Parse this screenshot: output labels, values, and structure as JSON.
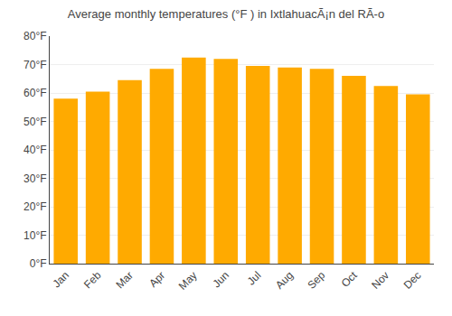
{
  "chart_data": {
    "type": "bar",
    "title": "Average monthly temperatures (°F ) in IxtlahuacÃ¡n del RÃ­-o",
    "categories": [
      "Jan",
      "Feb",
      "Mar",
      "Apr",
      "May",
      "Jun",
      "Jul",
      "Aug",
      "Sep",
      "Oct",
      "Nov",
      "Dec"
    ],
    "values": [
      58,
      60.5,
      64.5,
      68.5,
      72.5,
      72,
      69.5,
      69,
      68.5,
      66,
      62.5,
      59.5
    ],
    "color": "#FFAA00",
    "ylim": [
      0,
      80
    ],
    "yticks": [
      {
        "value": 0,
        "label": "0°F"
      },
      {
        "value": 10,
        "label": "10°F"
      },
      {
        "value": 20,
        "label": "20°F"
      },
      {
        "value": 30,
        "label": "30°F"
      },
      {
        "value": 40,
        "label": "40°F"
      },
      {
        "value": 50,
        "label": "50°F"
      },
      {
        "value": 60,
        "label": "60°F"
      },
      {
        "value": 70,
        "label": "70°F"
      },
      {
        "value": 80,
        "label": "80°F"
      }
    ],
    "grid": true
  }
}
